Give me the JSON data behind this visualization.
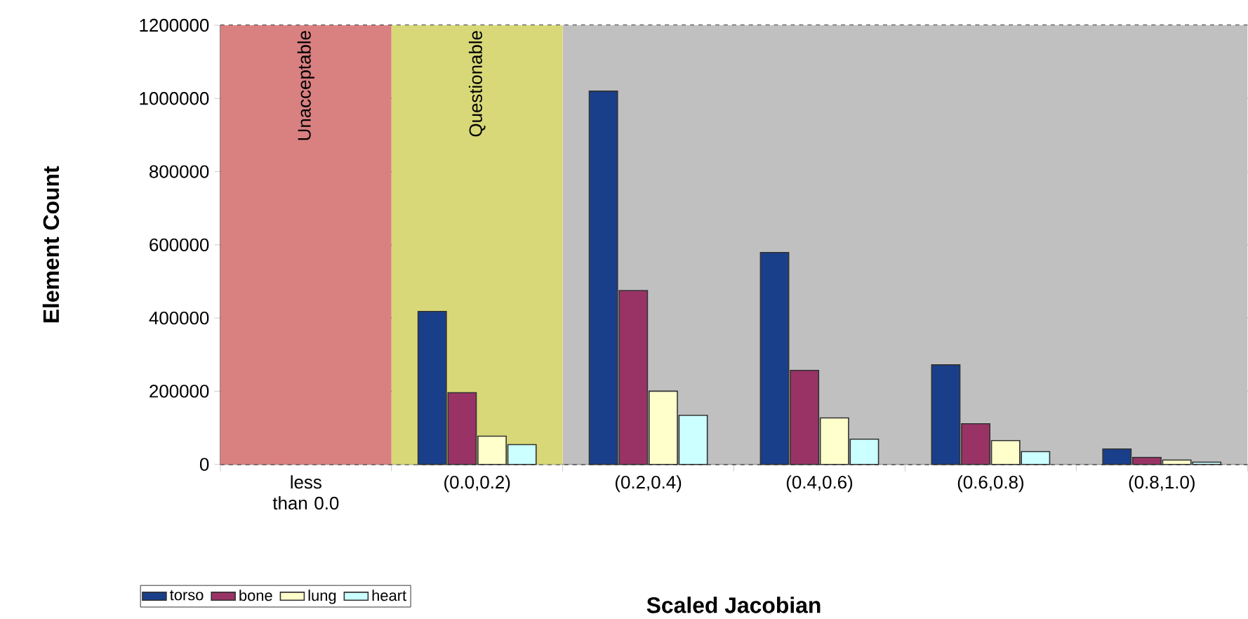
{
  "chart_data": {
    "type": "bar",
    "xlabel": "Scaled Jacobian",
    "ylabel": "Element Count",
    "categories": [
      "less than 0.0",
      "(0.0,0.2)",
      "(0.2,0.4)",
      "(0.4,0.6)",
      "(0.6,0.8)",
      "(0.8,1.0)"
    ],
    "series": [
      {
        "name": "torso",
        "color": "#1a3f8a",
        "values": [
          null,
          418000,
          1020000,
          579000,
          272000,
          42000
        ]
      },
      {
        "name": "bone",
        "color": "#993366",
        "values": [
          null,
          196000,
          475000,
          257000,
          111000,
          19000
        ]
      },
      {
        "name": "lung",
        "color": "#ffffcc",
        "values": [
          null,
          77000,
          200000,
          127000,
          65000,
          12000
        ]
      },
      {
        "name": "heart",
        "color": "#ccffff",
        "values": [
          null,
          54000,
          134000,
          69000,
          35000,
          6000
        ]
      }
    ],
    "ylim": [
      0,
      1200000
    ],
    "yticks": [
      0,
      200000,
      400000,
      600000,
      800000,
      1000000,
      1200000
    ],
    "grid": "y",
    "legend": "bottom left",
    "bands": [
      {
        "axis": "x",
        "from": "(0.2,0.4)",
        "to": "(0.8,1.0)",
        "label": null,
        "color": "#c0c0c0"
      },
      {
        "axis": "x",
        "from": "less than 0.0",
        "to": "less than 0.0",
        "label": "Unacceptable",
        "color": "#d98080"
      },
      {
        "axis": "x",
        "from": "(0.0,0.2)",
        "to": "(0.0,0.2)",
        "label": "Questionable",
        "color": "#d8d878"
      }
    ]
  }
}
